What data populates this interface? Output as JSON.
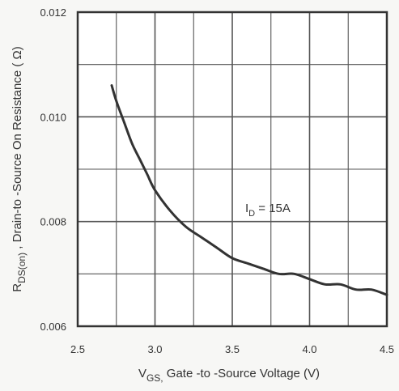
{
  "chart_data": {
    "type": "line",
    "xlabel_parts": {
      "main": "V",
      "sub": "GS,",
      "rest": " Gate -to -Source Voltage  (V)"
    },
    "ylabel_parts": {
      "main": "R",
      "sub": "DS(on)",
      "rest": " ,  Drain-to -Source On Resistance ( Ω)"
    },
    "xlim": [
      2.5,
      4.5
    ],
    "ylim": [
      0.006,
      0.012
    ],
    "x_ticks": [
      "2.5",
      "3.0",
      "3.5",
      "4.0",
      "4.5"
    ],
    "y_ticks": [
      "0.006",
      "0.008",
      "0.010",
      "0.012"
    ],
    "grid": true,
    "annotation": {
      "main": "I",
      "sub": "D",
      "rest": " = 15A"
    },
    "series": [
      {
        "x": [
          2.72,
          2.75,
          2.8,
          2.85,
          2.9,
          2.95,
          3.0,
          3.1,
          3.2,
          3.3,
          3.4,
          3.5,
          3.6,
          3.7,
          3.8,
          3.9,
          4.0,
          4.1,
          4.2,
          4.3,
          4.4,
          4.5
        ],
        "values": [
          0.0106,
          0.0103,
          0.0099,
          0.0095,
          0.0092,
          0.0089,
          0.0086,
          0.0082,
          0.0079,
          0.0077,
          0.0075,
          0.0073,
          0.0072,
          0.0071,
          0.007,
          0.007,
          0.0069,
          0.0068,
          0.0068,
          0.0067,
          0.0067,
          0.0066
        ]
      }
    ]
  }
}
